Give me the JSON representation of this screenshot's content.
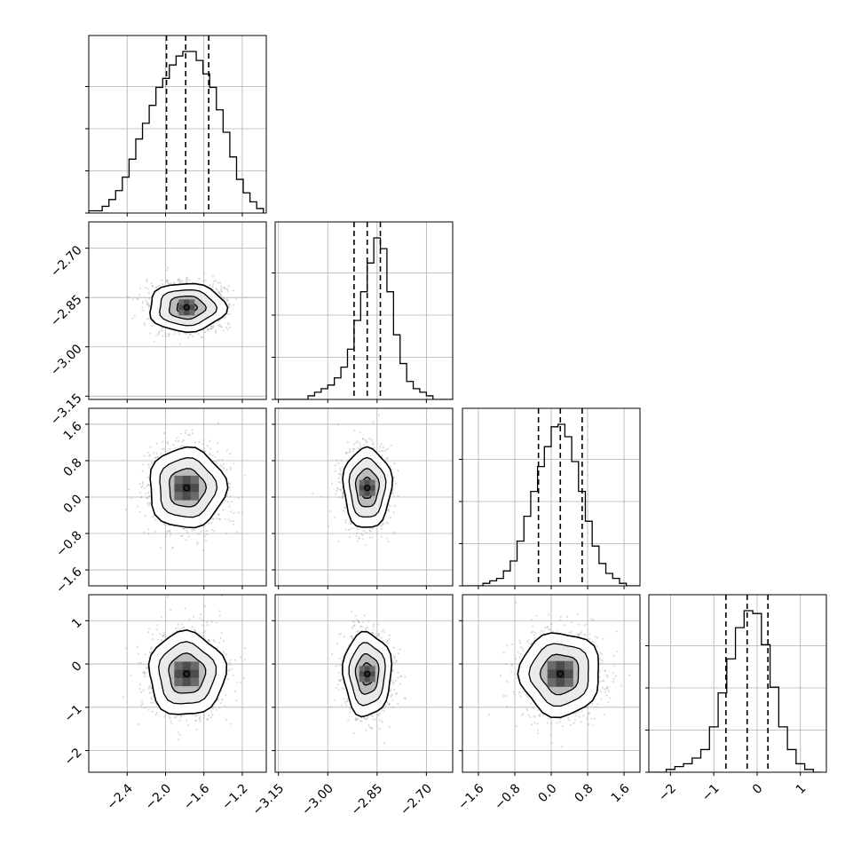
{
  "chart_data": {
    "type": "corner",
    "title": "",
    "parameters": [
      {
        "label": "",
        "range": [
          -2.8,
          -0.95
        ],
        "ticks": [
          -2.4,
          -2.0,
          -1.6,
          -1.2
        ],
        "tick_labels": [
          "−2.4",
          "−2.0",
          "−1.6",
          "−1.2"
        ],
        "quantiles": [
          -1.99,
          -1.79,
          -1.55
        ],
        "mean": -1.78,
        "sd": 0.19
      },
      {
        "label": "",
        "range": [
          -3.16,
          -2.62
        ],
        "ticks": [
          -3.15,
          -3.0,
          -2.85,
          -2.7
        ],
        "tick_labels": [
          "−3.15",
          "−3.00",
          "−2.85",
          "−2.70"
        ],
        "quantiles": [
          -2.92,
          -2.88,
          -2.84
        ],
        "mean": -2.88,
        "sd": 0.035
      },
      {
        "label": "",
        "range": [
          -1.95,
          1.95
        ],
        "ticks": [
          -1.6,
          -0.8,
          0.0,
          0.8,
          1.6
        ],
        "tick_labels": [
          "−1.6",
          "−0.8",
          "0.0",
          "0.8",
          "1.6"
        ],
        "quantiles": [
          -0.28,
          0.2,
          0.68
        ],
        "mean": 0.2,
        "sd": 0.42
      },
      {
        "label": "",
        "range": [
          -2.5,
          1.6
        ],
        "ticks": [
          -2,
          -1,
          0,
          1
        ],
        "tick_labels": [
          "−2",
          "−1",
          "0",
          "1"
        ],
        "quantiles": [
          -0.72,
          -0.23,
          0.25
        ],
        "mean": -0.23,
        "sd": 0.46
      }
    ],
    "histograms": [
      {
        "bins": [
          -2.8,
          -2.73,
          -2.66,
          -2.59,
          -2.52,
          -2.45,
          -2.38,
          -2.31,
          -2.24,
          -2.17,
          -2.1,
          -2.03,
          -1.96,
          -1.89,
          -1.82,
          -1.75,
          -1.68,
          -1.61,
          -1.54,
          -1.47,
          -1.4,
          -1.33,
          -1.26,
          -1.19,
          -1.12,
          -1.05,
          -0.98
        ],
        "counts": [
          1,
          1,
          3,
          6,
          10,
          16,
          24,
          33,
          40,
          48,
          56,
          60,
          66,
          70,
          72,
          72,
          68,
          62,
          56,
          46,
          36,
          25,
          15,
          9,
          5,
          2
        ]
      },
      {
        "bins": [
          -3.16,
          -3.14,
          -3.12,
          -3.1,
          -3.08,
          -3.06,
          -3.04,
          -3.02,
          -3.0,
          -2.98,
          -2.96,
          -2.94,
          -2.92,
          -2.9,
          -2.88,
          -2.86,
          -2.84,
          -2.82,
          -2.8,
          -2.78,
          -2.76,
          -2.74,
          -2.72,
          -2.7,
          -2.68,
          -2.66,
          -2.64,
          -2.62
        ],
        "counts": [
          0,
          0,
          0,
          0,
          0,
          1,
          2,
          3,
          4,
          6,
          9,
          14,
          22,
          30,
          38,
          45,
          42,
          30,
          18,
          10,
          5,
          3,
          2,
          1,
          0,
          0,
          0
        ]
      },
      {
        "bins": [
          -1.95,
          -1.8,
          -1.65,
          -1.5,
          -1.35,
          -1.2,
          -1.05,
          -0.9,
          -0.75,
          -0.6,
          -0.45,
          -0.3,
          -0.15,
          0.0,
          0.15,
          0.3,
          0.45,
          0.6,
          0.75,
          0.9,
          1.05,
          1.2,
          1.35,
          1.5,
          1.65,
          1.8,
          1.95
        ],
        "counts": [
          0,
          0,
          0,
          1,
          2,
          3,
          6,
          10,
          18,
          28,
          38,
          48,
          56,
          64,
          65,
          60,
          50,
          38,
          26,
          16,
          9,
          5,
          3,
          1,
          0,
          0
        ]
      },
      {
        "bins": [
          -2.5,
          -2.3,
          -2.1,
          -1.9,
          -1.7,
          -1.5,
          -1.3,
          -1.1,
          -0.9,
          -0.7,
          -0.5,
          -0.3,
          -0.1,
          0.1,
          0.3,
          0.5,
          0.7,
          0.9,
          1.1,
          1.3,
          1.5
        ],
        "counts": [
          0,
          0,
          1,
          2,
          3,
          5,
          8,
          16,
          28,
          40,
          51,
          57,
          56,
          45,
          30,
          16,
          8,
          3,
          1,
          0
        ]
      }
    ],
    "grid": true,
    "legend": "none"
  }
}
